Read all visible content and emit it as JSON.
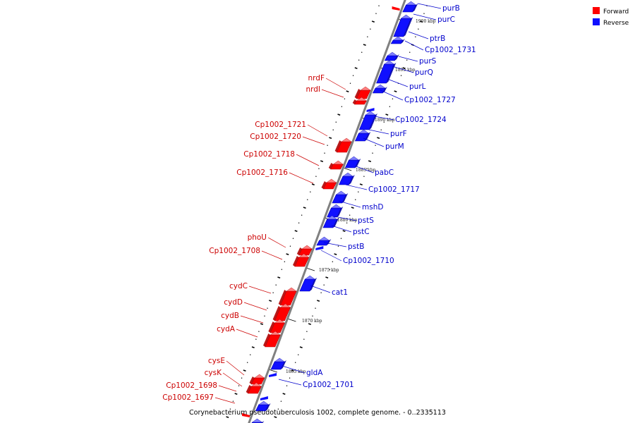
{
  "colors": {
    "forward": "#ff0000",
    "forward_dark": "#b00000",
    "forward_light": "#ff8080",
    "reverse": "#1010ff",
    "reverse_dark": "#0000a8",
    "reverse_light": "#8080ff",
    "forward_label": "#cc0000",
    "reverse_label": "#0000cc",
    "backbone": "#808080",
    "tick": "#000000"
  },
  "legend": [
    {
      "label": "Forward",
      "strand": "forward"
    },
    {
      "label": "Reverse",
      "strand": "reverse"
    }
  ],
  "caption": "Corynebacterium pseudotuberculosis 1002, complete genome. - 0..2335113",
  "ticks": [
    "1900 kbp",
    "1895 kbp",
    "1890 kbp",
    "1885 kbp",
    "1880 kbp",
    "1875 kbp",
    "1870 kbp",
    "1865 kbp"
  ],
  "reverse_genes": [
    "purB",
    "purC",
    "ptrB",
    "Cp1002_1731",
    "purS",
    "purQ",
    "purL",
    "Cp1002_1727",
    "Cp1002_1724",
    "purF",
    "purM",
    "pabC",
    "Cp1002_1717",
    "mshD",
    "pstS",
    "pstC",
    "pstB",
    "Cp1002_1710",
    "cat1",
    "gldA",
    "Cp1002_1701"
  ],
  "forward_genes": [
    "nrdF",
    "nrdI",
    "Cp1002_1721",
    "Cp1002_1720",
    "Cp1002_1718",
    "Cp1002_1716",
    "phoU",
    "Cp1002_1708",
    "cydC",
    "cydD",
    "cydB",
    "cydA",
    "cysE",
    "cysK",
    "Cp1002_1698",
    "Cp1002_1697"
  ]
}
